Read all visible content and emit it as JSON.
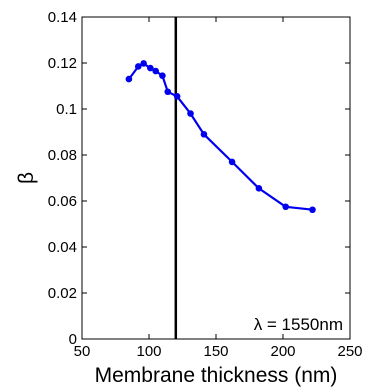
{
  "chart_data": {
    "type": "line",
    "xlabel": "Membrane thickness (nm)",
    "ylabel": "β",
    "xlim": [
      50,
      250
    ],
    "ylim": [
      0,
      0.14
    ],
    "x_ticks": [
      "50",
      "100",
      "150",
      "200",
      "250"
    ],
    "y_ticks": [
      "0",
      "0.02",
      "0.04",
      "0.06",
      "0.08",
      "0.1",
      "0.12",
      "0.14"
    ],
    "grid": false,
    "series": [
      {
        "color": "#0000ee",
        "x": [
          85,
          92,
          96,
          101,
          105,
          110,
          114,
          121,
          131,
          141,
          162,
          182,
          202,
          222
        ],
        "y": [
          0.113,
          0.1185,
          0.1198,
          0.1178,
          0.1165,
          0.1145,
          0.1075,
          0.1055,
          0.098,
          0.089,
          0.077,
          0.0655,
          0.0575,
          0.0562
        ]
      }
    ],
    "vertical_line": {
      "x": 120,
      "color": "#000000"
    },
    "annotation": "λ = 1550nm"
  }
}
